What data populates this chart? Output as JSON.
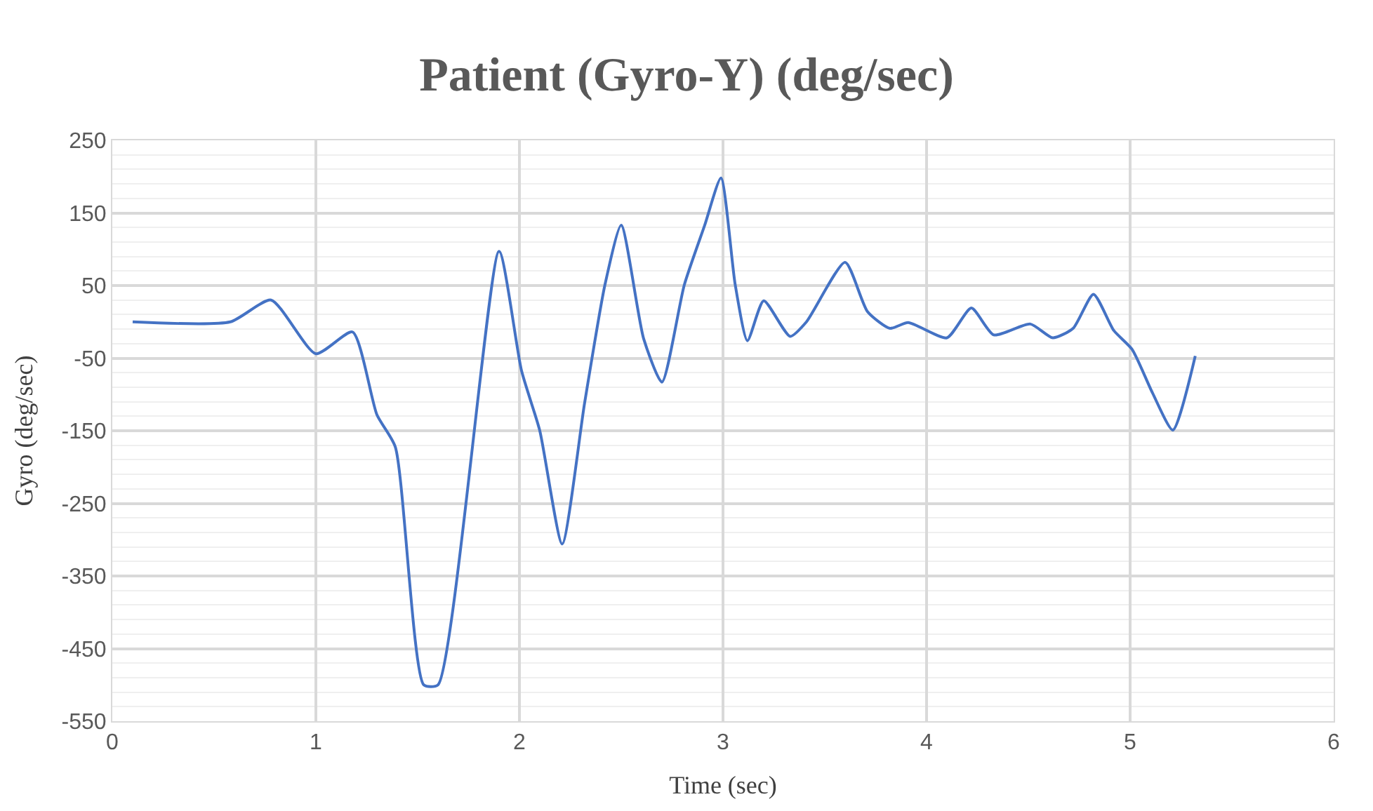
{
  "chart_data": {
    "type": "line",
    "title": "Patient (Gyro-Y) (deg/sec)",
    "xlabel": "Time (sec)",
    "ylabel": "Gyro (deg/sec)",
    "x": [
      0.1,
      0.58,
      0.78,
      1.0,
      1.18,
      1.3,
      1.39,
      1.53,
      1.6,
      1.9,
      2.01,
      2.1,
      2.21,
      2.32,
      2.42,
      2.5,
      2.61,
      2.7,
      2.81,
      2.91,
      2.99,
      3.06,
      3.12,
      3.2,
      3.33,
      3.41,
      3.6,
      3.71,
      3.82,
      3.91,
      4.1,
      4.22,
      4.33,
      4.51,
      4.62,
      4.72,
      4.82,
      4.92,
      5.01,
      5.11,
      5.21,
      5.32
    ],
    "series": [
      {
        "color": "#4472c4",
        "values": [
          0,
          0,
          30,
          -44,
          -14,
          -128,
          -172,
          -500,
          -500,
          97,
          -67,
          -150,
          -306,
          -112,
          51,
          133,
          -23,
          -83,
          51,
          133,
          198,
          51,
          -26,
          29,
          -20,
          0,
          82,
          14,
          -9,
          -1,
          -22,
          19,
          -18,
          -3,
          -22,
          -9,
          38,
          -12,
          -38,
          -98,
          -149,
          -47
        ]
      }
    ],
    "xlim": [
      0,
      6
    ],
    "xticks": [
      0,
      1,
      2,
      3,
      4,
      5,
      6
    ],
    "ylim": [
      -550,
      250
    ],
    "yticks": [
      250,
      150,
      50,
      -50,
      -150,
      -250,
      -350,
      -450,
      -550
    ],
    "grid": true,
    "marker": "none",
    "line_style": "solid"
  }
}
